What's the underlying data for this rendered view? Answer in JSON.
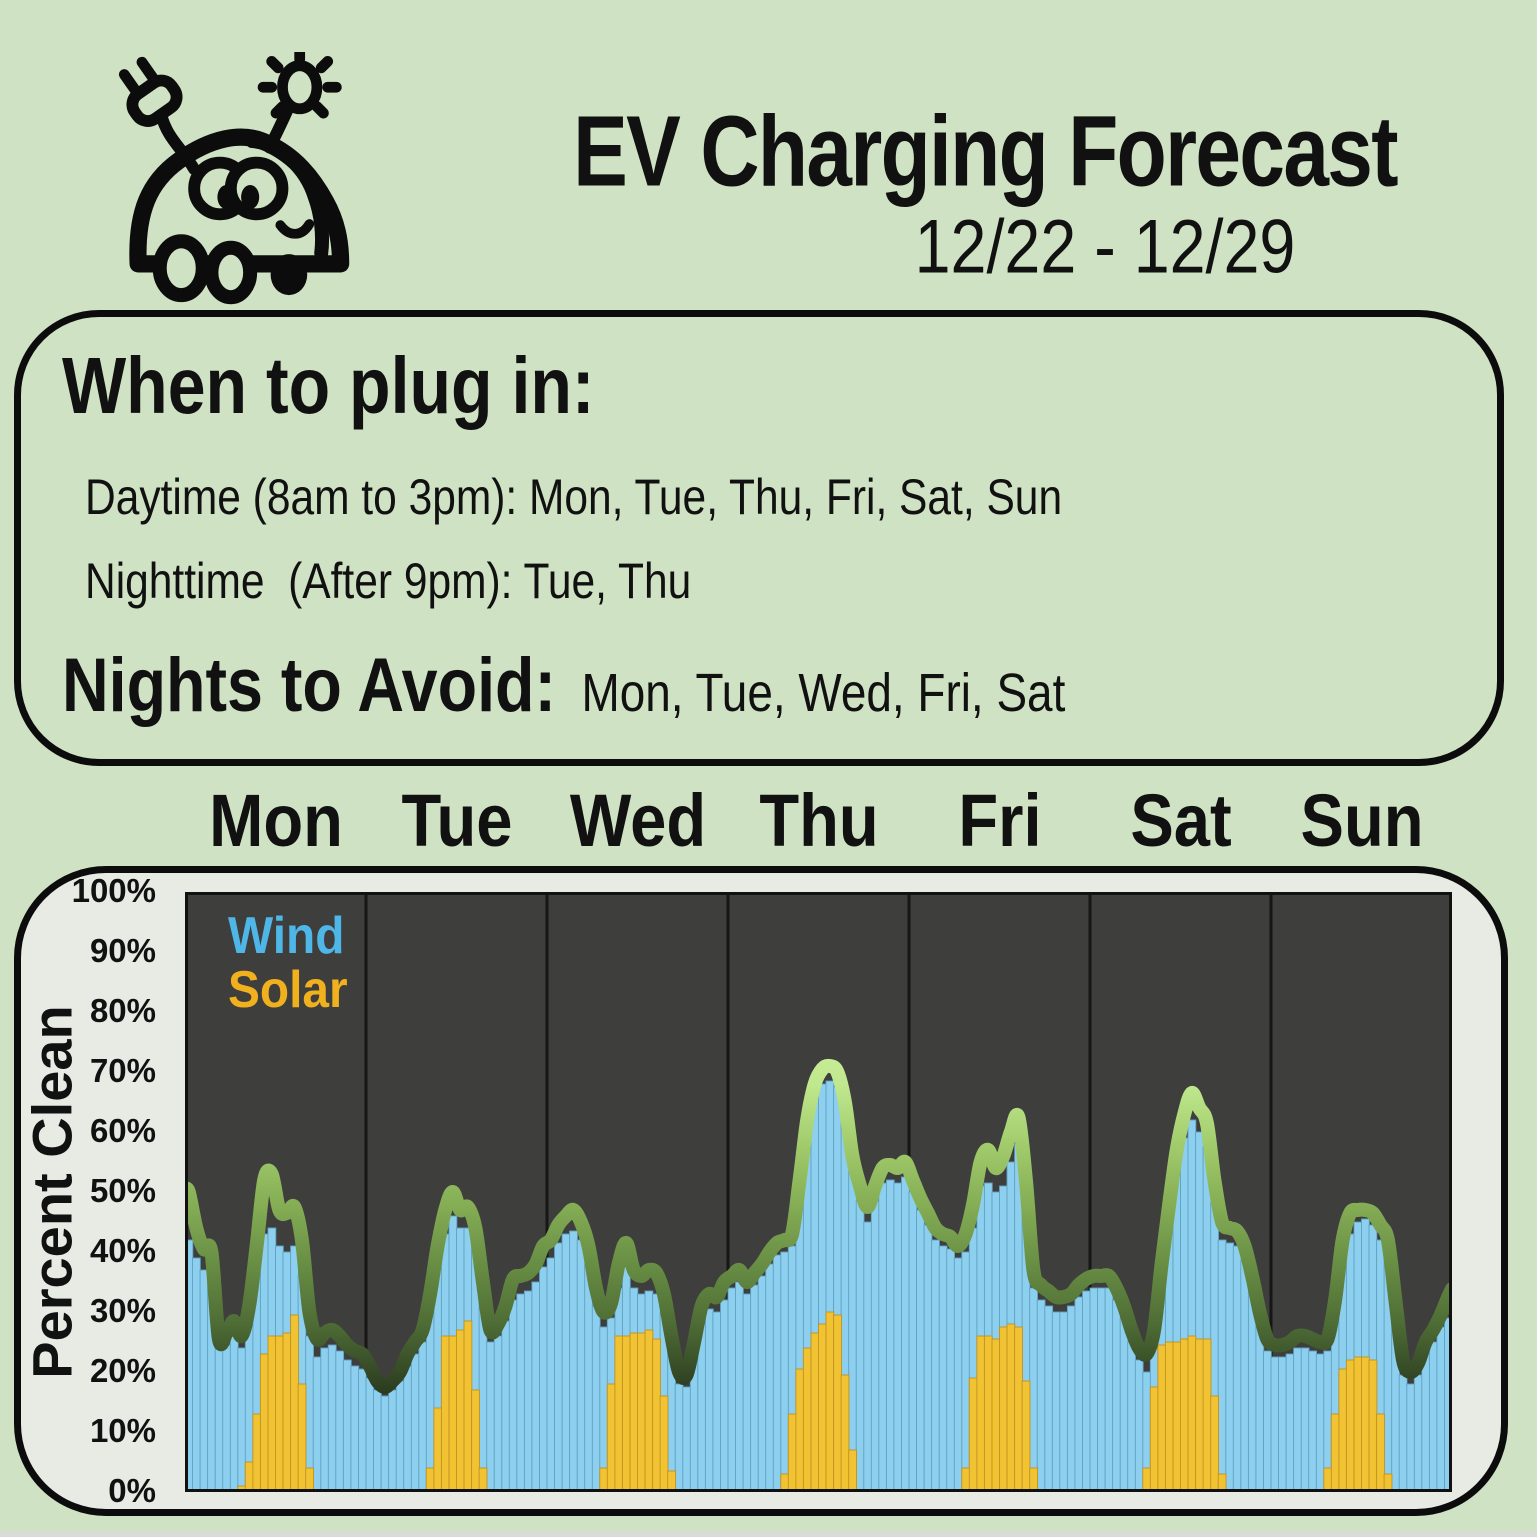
{
  "page": {
    "background": "#cfe2c3",
    "footer_strip_color": "#d9dcd6"
  },
  "header": {
    "title": "EV Charging Forecast",
    "date_range": "12/22 - 12/29",
    "car_icon": "ev-car-with-plug-and-sun"
  },
  "info_box": {
    "heading": "When to plug in:",
    "daytime_line": "Daytime (8am to 3pm): Mon, Tue, Thu, Fri, Sat, Sun",
    "nighttime_line": "Nighttime  (After 9pm): Tue, Thu",
    "avoid_label": "Nights to Avoid:",
    "avoid_days": "  Mon, Tue, Wed, Fri, Sat"
  },
  "chart_data": {
    "type": "area",
    "title": "",
    "xlabel": "",
    "ylabel": "Percent Clean",
    "ylim": [
      0,
      100
    ],
    "ytick_labels": [
      "100%",
      "90%",
      "80%",
      "70%",
      "60%",
      "50%",
      "40%",
      "30%",
      "20%",
      "10%",
      "0%"
    ],
    "day_labels": [
      "Mon",
      "Tue",
      "Wed",
      "Thu",
      "Fri",
      "Sat",
      "Sun"
    ],
    "legend": [
      {
        "label": "Wind",
        "color": "#4fb6e8"
      },
      {
        "label": "Solar",
        "color": "#f1b01e"
      }
    ],
    "x_unit": "hour of day (0-23), one panel per day",
    "series_note": "percent of grid electricity that is clean; green line = total clean, blue = wind, yellow = solar",
    "colors": {
      "plot_bg": "#3e3e3c",
      "wind_fill": "#8ccfee",
      "wind_stroke": "#609fc0",
      "solar_fill": "#f1c232",
      "solar_stroke": "#bf9222",
      "divider": "#161616",
      "plot_border": "#111111"
    },
    "line_gradient": [
      [
        0,
        "#ddf7ac"
      ],
      [
        0.22,
        "#cdf09d"
      ],
      [
        0.32,
        "#c0e88e"
      ],
      [
        0.42,
        "#a2cc6c"
      ],
      [
        0.52,
        "#85ae55"
      ],
      [
        0.62,
        "#688e44"
      ],
      [
        0.72,
        "#4e6c35"
      ],
      [
        0.82,
        "#2f4122"
      ],
      [
        0.9,
        "#162210"
      ],
      [
        1,
        "#0a1007"
      ]
    ],
    "days_data": [
      {
        "day": "Mon",
        "line": [
          50,
          44,
          40.5,
          40,
          25.5,
          26.5,
          28.5,
          26,
          31,
          41,
          52,
          53,
          47,
          46.5,
          47.5,
          42,
          30,
          25.5,
          26.5,
          27,
          26,
          24.5,
          23.5,
          23
        ],
        "wind": [
          42,
          39,
          37,
          36,
          24,
          24.5,
          26,
          24,
          28,
          37,
          43,
          44,
          41,
          40,
          41,
          36,
          26,
          22.5,
          24,
          24.5,
          23.5,
          22,
          21,
          20.5
        ],
        "solar": [
          0,
          0,
          0,
          0,
          0,
          0,
          0,
          1,
          5,
          13,
          23,
          26,
          26,
          26.5,
          29.5,
          18,
          4,
          0,
          0,
          0,
          0,
          0,
          0,
          0
        ]
      },
      {
        "day": "Tue",
        "line": [
          21,
          18.5,
          17.5,
          18.5,
          20,
          23,
          25,
          27,
          33,
          41,
          47,
          50,
          47,
          47.5,
          44,
          35,
          27,
          28,
          31,
          35.5,
          36,
          36.5,
          38,
          41
        ],
        "wind": [
          19,
          17,
          16,
          17,
          18.5,
          21,
          23,
          25,
          30,
          38,
          43,
          46,
          44,
          44,
          41,
          32,
          25,
          26,
          28.5,
          32,
          33,
          33.5,
          35,
          37.5
        ],
        "solar": [
          0,
          0,
          0,
          0,
          0,
          0,
          0,
          0,
          4,
          14,
          26,
          26,
          27,
          28.5,
          17,
          4,
          0,
          0,
          0,
          0,
          0,
          0,
          0,
          0
        ]
      },
      {
        "day": "Wed",
        "line": [
          42,
          44.5,
          46,
          47,
          45,
          41,
          34,
          30,
          31.5,
          38,
          41.5,
          37,
          36,
          37,
          36.5,
          33,
          26,
          20,
          19.5,
          25,
          31,
          33,
          32.5,
          35
        ],
        "wind": [
          39,
          41.5,
          43,
          43.5,
          42,
          38,
          31,
          27.5,
          29,
          34,
          37.5,
          34,
          33,
          33.5,
          33,
          30,
          23.5,
          18,
          17.5,
          22.5,
          28,
          30.5,
          30,
          32
        ],
        "solar": [
          0,
          0,
          0,
          0,
          0,
          0,
          0,
          4,
          18,
          26,
          26,
          26.5,
          26.5,
          27,
          25.5,
          16,
          3.5,
          0,
          0,
          0,
          0,
          0,
          0,
          0
        ]
      },
      {
        "day": "Thu",
        "line": [
          36,
          37,
          35,
          36.5,
          38,
          40,
          41.5,
          42,
          43,
          52,
          62,
          68,
          70.5,
          71,
          70,
          65,
          56,
          51,
          47.5,
          51,
          54,
          54.5,
          54,
          55
        ],
        "wind": [
          34,
          35,
          33,
          34.5,
          36,
          38,
          39.5,
          40,
          41,
          49.5,
          59.5,
          65.5,
          68,
          68.5,
          67.5,
          62.5,
          53.5,
          48.5,
          45,
          48.5,
          51.5,
          52,
          51.5,
          52.5
        ],
        "solar": [
          0,
          0,
          0,
          0,
          0,
          0,
          0,
          3,
          13,
          20.5,
          24,
          26.5,
          28,
          30,
          29.5,
          19.5,
          7,
          0,
          0,
          0,
          0,
          0,
          0,
          0
        ]
      },
      {
        "day": "Fri",
        "line": [
          52,
          49,
          46.5,
          44,
          43,
          42.5,
          41,
          43,
          48,
          55,
          57,
          54,
          56,
          60,
          62.5,
          52,
          37,
          34.5,
          33.5,
          32.5,
          32.5,
          33,
          34.5,
          35.5
        ],
        "wind": [
          50,
          47,
          44.5,
          42,
          41,
          40.5,
          39,
          40,
          44,
          51,
          51.5,
          50,
          51,
          55,
          58,
          47,
          34,
          32,
          31,
          30,
          30,
          31,
          32.5,
          33.5
        ],
        "solar": [
          0,
          0,
          0,
          0,
          0,
          0,
          0,
          4,
          19,
          26,
          26,
          25.5,
          27.5,
          28,
          27.5,
          18.5,
          4,
          0,
          0,
          0,
          0,
          0,
          0,
          0
        ]
      },
      {
        "day": "Sat",
        "line": [
          36,
          36,
          36,
          34,
          31,
          27,
          24,
          23,
          27,
          38,
          48,
          57,
          63,
          66.5,
          64,
          61.5,
          52,
          45,
          44,
          43.5,
          41,
          36,
          30,
          25.5
        ],
        "wind": [
          34,
          34,
          34,
          32,
          29,
          25,
          22,
          20,
          24,
          34,
          44,
          53,
          59,
          62,
          60,
          57.5,
          48,
          42,
          41.5,
          41,
          38.5,
          34,
          28,
          23.5
        ],
        "solar": [
          0,
          0,
          0,
          0,
          0,
          0,
          0,
          4,
          17.5,
          24.5,
          25,
          25,
          25.5,
          26,
          25.5,
          25.5,
          16,
          3,
          0,
          0,
          0,
          0,
          0,
          0
        ]
      },
      {
        "day": "Sun",
        "line": [
          24.5,
          24.5,
          25,
          26,
          26,
          25.5,
          25,
          25.5,
          32,
          42,
          46.5,
          47,
          47,
          46.5,
          44.5,
          42,
          32,
          22,
          20,
          21.5,
          25,
          27,
          29.5,
          32.5
        ],
        "wind": [
          22.5,
          22.5,
          23,
          24,
          24,
          23.5,
          23,
          23.5,
          29,
          38,
          43,
          45,
          45.5,
          44.5,
          42,
          39,
          29,
          19.5,
          18,
          19.5,
          23,
          25,
          27.5,
          29
        ],
        "solar": [
          0,
          0,
          0,
          0,
          0,
          0,
          0,
          4,
          13,
          20.5,
          22,
          22.5,
          22.5,
          22,
          13,
          3,
          0,
          0,
          0,
          0,
          0,
          0,
          0,
          0
        ]
      }
    ]
  }
}
